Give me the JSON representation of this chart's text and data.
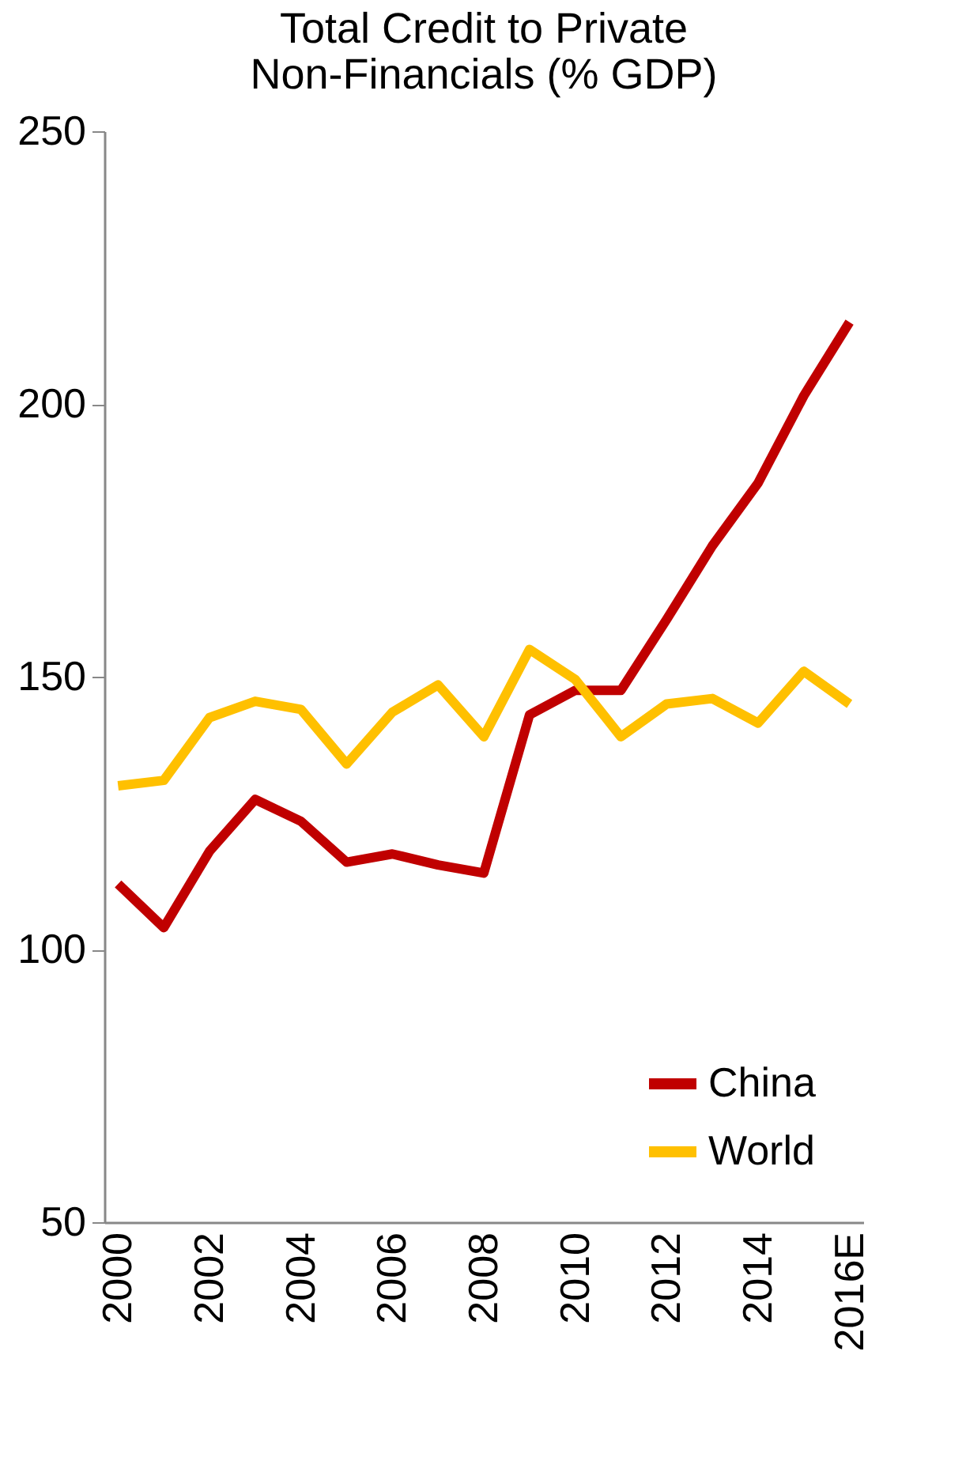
{
  "chart_data": {
    "type": "line",
    "title": "Total Credit to Private Non-Financials (% GDP)",
    "categories": [
      "2000",
      null,
      "2002",
      null,
      "2004",
      null,
      "2006",
      null,
      "2008",
      null,
      "2010",
      null,
      "2012",
      null,
      "2014",
      null,
      "2016E"
    ],
    "series": [
      {
        "name": "China",
        "color": "#c00000",
        "values": [
          112,
          104,
          118,
          127.5,
          123.5,
          116,
          117.5,
          115.5,
          114,
          143,
          147.5,
          147.5,
          160.5,
          174,
          185.5,
          201.5,
          215
        ]
      },
      {
        "name": "World",
        "color": "#ffc000",
        "values": [
          130,
          131,
          142.5,
          145.5,
          144,
          134,
          143.5,
          148.5,
          139,
          155,
          149.5,
          139,
          145,
          146,
          141.5,
          151,
          145
        ]
      }
    ],
    "ylim": [
      50,
      250
    ],
    "yticks": [
      50,
      100,
      150,
      200,
      250
    ],
    "grid": false,
    "legend": "bottom right",
    "marker": "none",
    "line_style": "solid"
  }
}
